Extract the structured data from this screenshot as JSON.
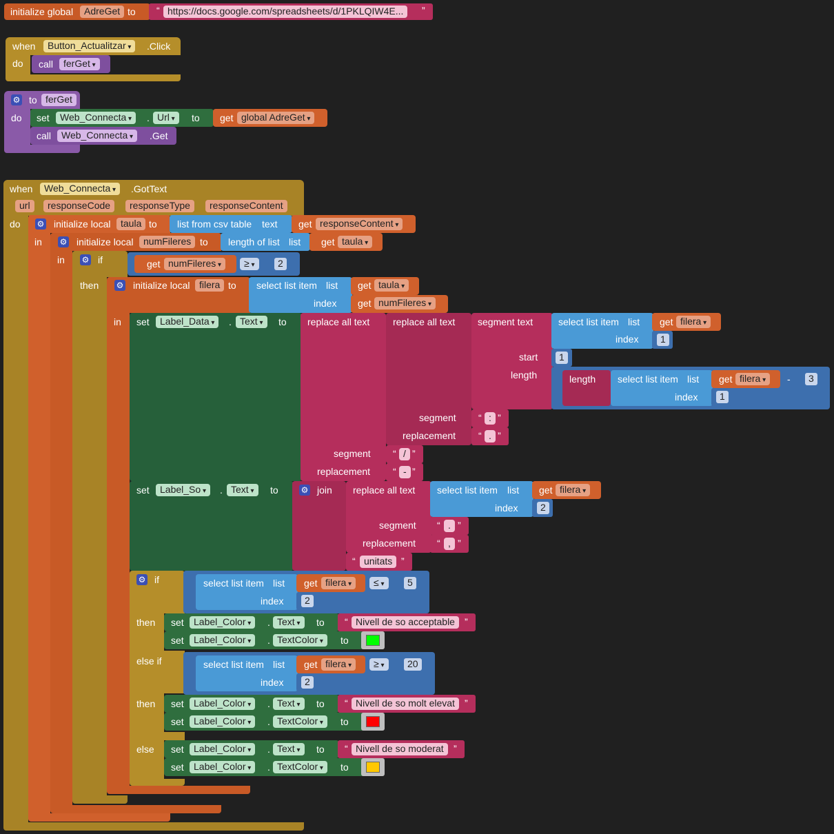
{
  "global_block": {
    "initialize_global": "initialize global",
    "var_name": "AdreGet",
    "to": "to",
    "url_value": "https://docs.google.com/spreadsheets/d/1PKLQIW4E..."
  },
  "click_event": {
    "when": "when",
    "component": "Button_Actualitzar",
    "event": ".Click",
    "do": "do",
    "call": "call",
    "procedure": "ferGet"
  },
  "procedure_def": {
    "to": "to",
    "name": "ferGet",
    "do": "do",
    "set": "set",
    "component": "Web_Connecta",
    "dot": ".",
    "property": "Url",
    "to2": "to",
    "get": "get",
    "var": "global AdreGet",
    "call": "call",
    "call_component": "Web_Connecta",
    "call_method": ".Get"
  },
  "gottext_event": {
    "when": "when",
    "component": "Web_Connecta",
    "event": ".GotText",
    "params": [
      "url",
      "responseCode",
      "responseType",
      "responseContent"
    ],
    "do": "do",
    "in": "in"
  },
  "locals": {
    "initialize_local": "initialize local",
    "taula": "taula",
    "numFileres": "numFileres",
    "filera": "filera",
    "to": "to",
    "list_from_csv": "list from csv table",
    "text": "text",
    "get": "get",
    "responseContent": "responseContent",
    "length_of_list": "length of list",
    "list": "list",
    "select_list_item": "select list item",
    "index": "index"
  },
  "if_block": {
    "if": "if",
    "then": "then",
    "op_ge": "≥",
    "value_2": "2"
  },
  "label_data": {
    "set": "set",
    "component": "Label_Data",
    "dot": ".",
    "property": "Text",
    "to": "to",
    "replace_all_text": "replace all text",
    "segment_text": "segment text",
    "segment": "segment",
    "replacement": "replacement",
    "start": "start",
    "length": "length",
    "minus": "-",
    "num_1": "1",
    "num_3": "3",
    "seg1": ":",
    "rep1": ".",
    "seg2": "/",
    "rep2": "-"
  },
  "label_so": {
    "set": "set",
    "component": "Label_So",
    "property": "Text",
    "to": "to",
    "join": "join",
    "num_2": "2",
    "seg": ".",
    "rep": ",",
    "unitats": "unitats"
  },
  "nested_if": {
    "if": "if",
    "then": "then",
    "else_if": "else if",
    "else": "else",
    "op_le": "≤",
    "op_ge": "≥",
    "num_5": "5",
    "num_20": "20"
  },
  "color_sets": {
    "set": "set",
    "component": "Label_Color",
    "text": "Text",
    "text_color": "TextColor",
    "to": "to",
    "msg_acceptable": "Nivell de so acceptable",
    "msg_elevat": "Nivell de so molt elevat",
    "msg_moderat": "Nivell de so moderat",
    "color_green": "#00ff00",
    "color_red": "#ff0000",
    "color_yellow": "#ffc800"
  },
  "quote_open": "“",
  "quote_close": "”"
}
